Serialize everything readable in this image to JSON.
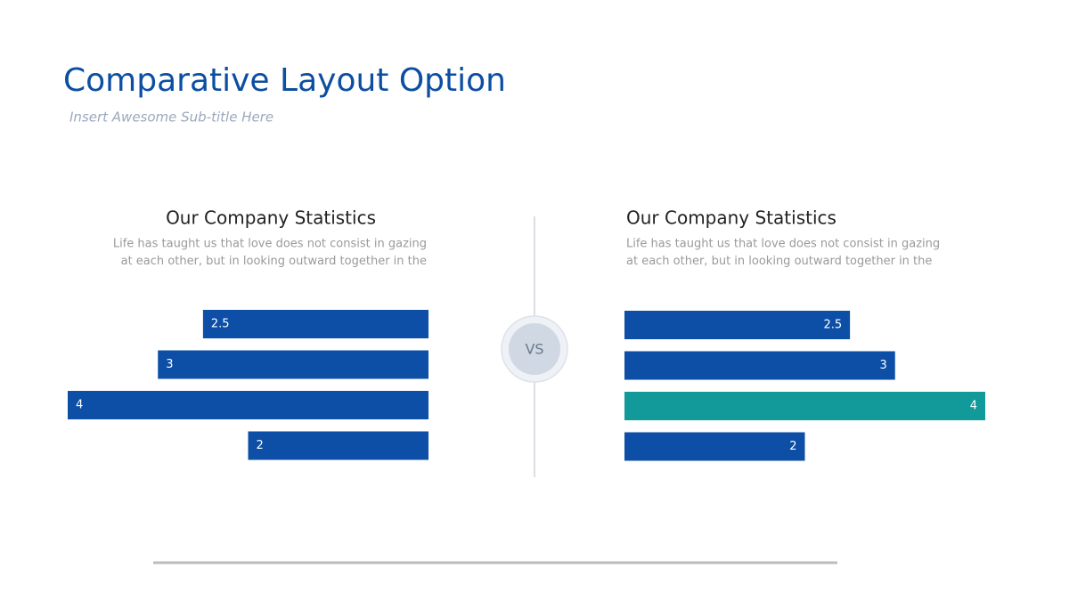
{
  "header": {
    "title": "Comparative Layout Option",
    "subtitle": "Insert Awesome Sub-title Here"
  },
  "vs": "VS",
  "chart_data": [
    {
      "type": "bar",
      "orientation": "horizontal",
      "mirror": true,
      "title": "Our Company Statistics",
      "description": [
        "Life has taught us that love does not consist in gazing",
        "at each other, but in looking outward together in the"
      ],
      "values": [
        2.5,
        3,
        4,
        2
      ],
      "colors": [
        "#0d4ea6",
        "#0d4ea6",
        "#0d4ea6",
        "#0d4ea6"
      ]
    },
    {
      "type": "bar",
      "orientation": "horizontal",
      "mirror": false,
      "title": "Our Company Statistics",
      "description": [
        "Life has taught us that love does not consist in gazing",
        "at each other, but in looking outward together in the"
      ],
      "values": [
        2.5,
        3,
        4,
        2
      ],
      "colors": [
        "#0d4ea6",
        "#0d4ea6",
        "#12999a",
        "#0d4ea6"
      ]
    }
  ]
}
